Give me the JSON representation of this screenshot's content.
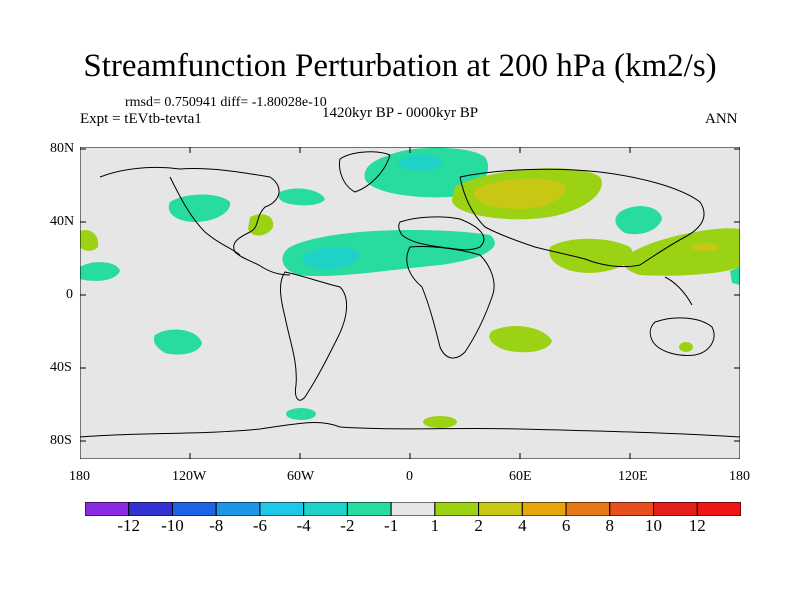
{
  "title": "Streamfunction Perturbation at 200 hPa (km2/s)",
  "stats_line": "rmsd= 0.750941 diff= -1.80028e-10",
  "experiment": "Expt = tEVtb-tevta1",
  "period": "1420kyr BP - 0000kyr BP",
  "season": "ANN",
  "lat_ticks": [
    "80N",
    "40N",
    "0",
    "40S",
    "80S"
  ],
  "lon_ticks": [
    "180",
    "120W",
    "60W",
    "0",
    "60E",
    "120E",
    "180"
  ],
  "colorbar": {
    "labels": [
      "-12",
      "-10",
      "-8",
      "-6",
      "-4",
      "-2",
      "-1",
      "1",
      "2",
      "4",
      "6",
      "8",
      "10",
      "12"
    ],
    "colors": [
      "#8a2be2",
      "#3232d2",
      "#1e64e6",
      "#1e96e6",
      "#1ec8e6",
      "#1ed2c8",
      "#28dca0",
      "#e6e6e6",
      "#9bd214",
      "#c8c814",
      "#e6a50a",
      "#e67814",
      "#e6501e",
      "#e61e1e",
      "#f01414"
    ]
  },
  "colors": {
    "background_field": "#e6e6e6",
    "coastline": "#000000"
  }
}
